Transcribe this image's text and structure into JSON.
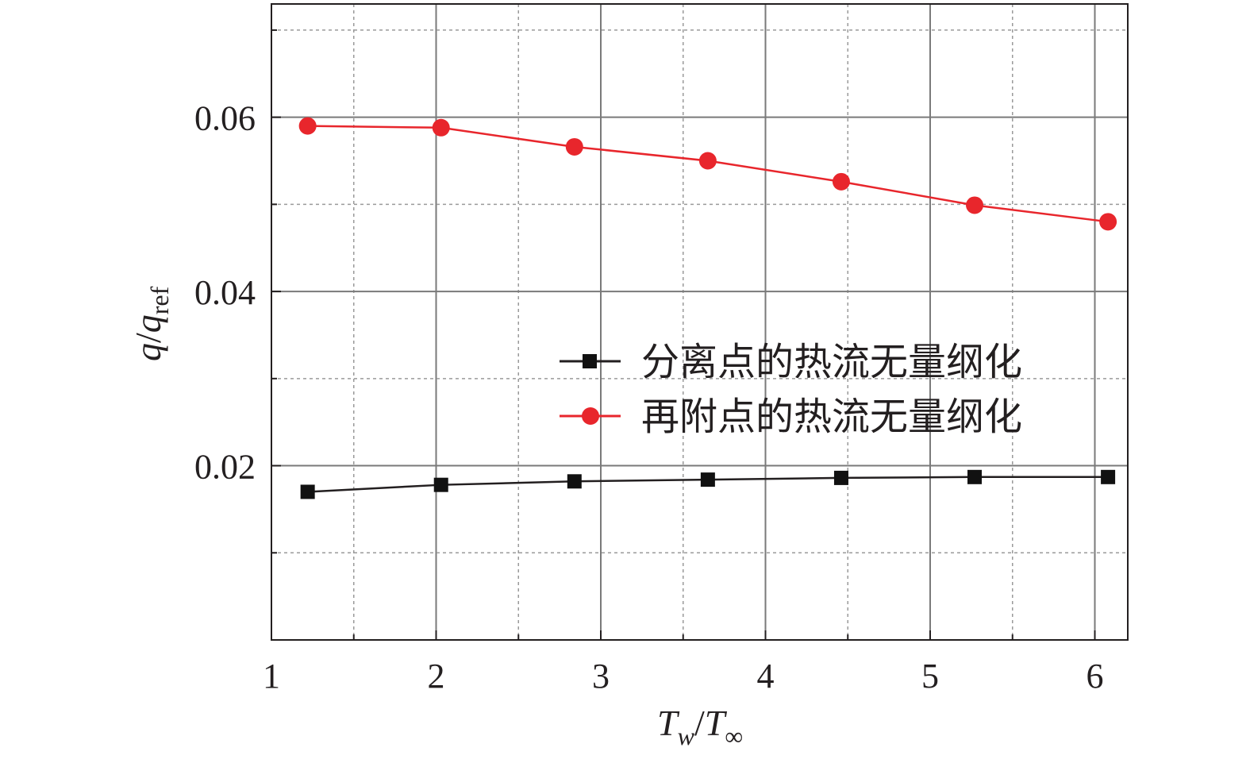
{
  "chart_data": {
    "type": "line",
    "x": [
      1.22,
      2.03,
      2.84,
      3.65,
      4.46,
      5.27,
      6.08
    ],
    "series": [
      {
        "name": "分离点的热流无量纲化",
        "values": [
          0.017,
          0.0178,
          0.0182,
          0.0184,
          0.0186,
          0.0187,
          0.0187
        ],
        "color": "#231f20",
        "marker": "square"
      },
      {
        "name": "再附点的热流无量纲化",
        "values": [
          0.059,
          0.0588,
          0.0566,
          0.055,
          0.0526,
          0.0499,
          0.048
        ],
        "color": "#e8262c",
        "marker": "circle"
      }
    ],
    "xlim": [
      1,
      6.2
    ],
    "ylim": [
      0,
      0.073
    ],
    "x_ticks": [
      "1",
      "2",
      "3",
      "4",
      "5",
      "6"
    ],
    "x_tick_values": [
      1,
      2,
      3,
      4,
      5,
      6
    ],
    "y_ticks": [
      "0.02",
      "0.04",
      "0.06"
    ],
    "y_tick_values": [
      0.02,
      0.04,
      0.06
    ],
    "xlabel": {
      "main": "T",
      "sub1": "w",
      "slash": "/",
      "main2": "T",
      "sub2": "∞"
    },
    "ylabel": {
      "main": "q",
      "slash": "/",
      "main2": "q",
      "sub": "ref"
    },
    "grid": true,
    "legend_position": "center-right"
  }
}
